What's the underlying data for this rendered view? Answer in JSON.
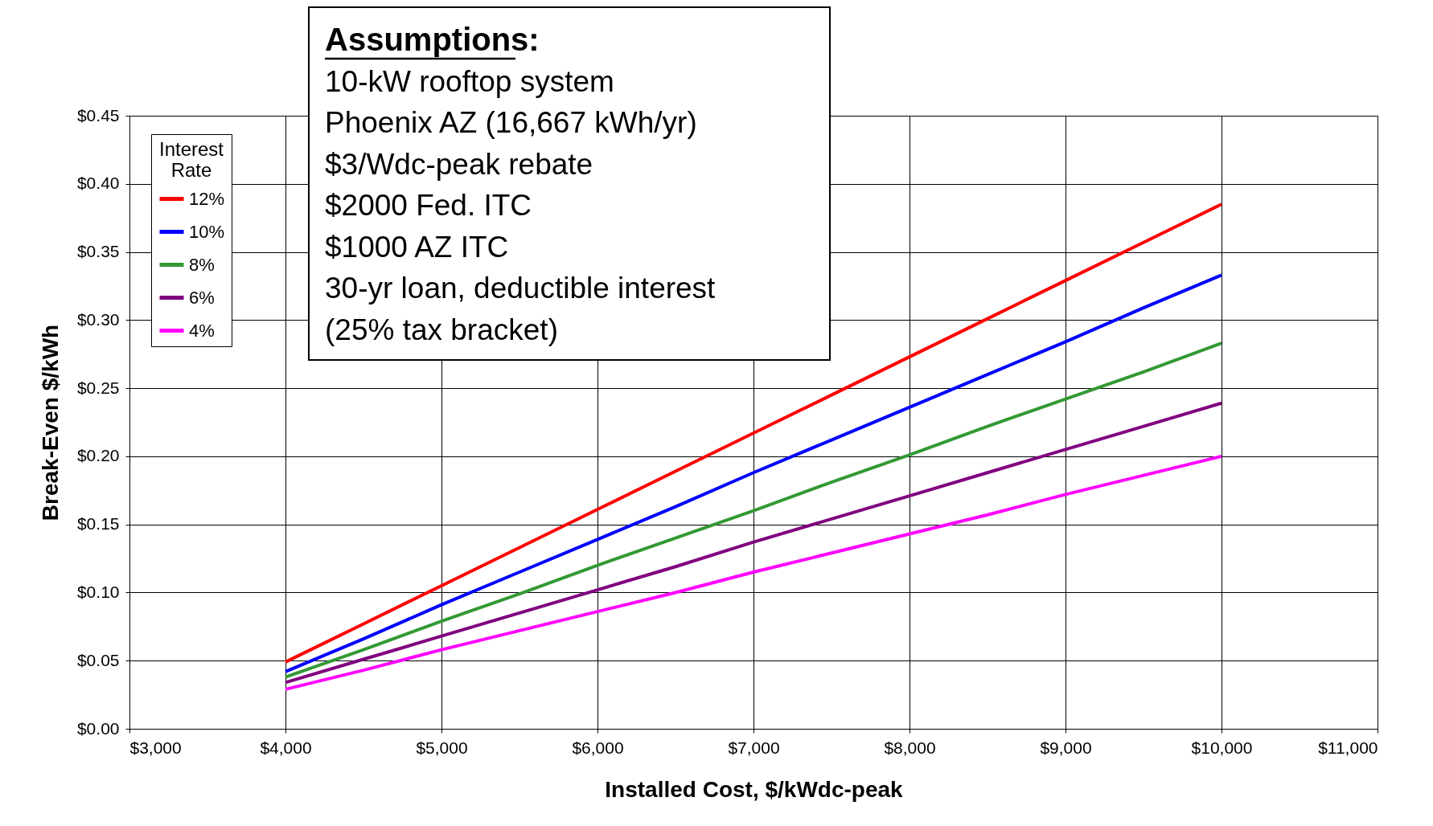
{
  "chart_data": {
    "type": "line",
    "xlabel": "Installed Cost, $/kWdc-peak",
    "ylabel": "Break-Even $/kWh",
    "legend_title": "Interest Rate",
    "legend": "top left",
    "grid": true,
    "marker": "none",
    "line_style": "solid",
    "x": [
      4000,
      4500,
      5000,
      5500,
      6000,
      6500,
      7000,
      7500,
      8000,
      8500,
      9000,
      9500,
      10000
    ],
    "series": [
      {
        "name": "12%",
        "color": "#ff0000",
        "values": [
          0.049,
          0.077,
          0.105,
          0.133,
          0.161,
          0.189,
          0.217,
          0.245,
          0.273,
          0.301,
          0.329,
          0.357,
          0.385
        ]
      },
      {
        "name": "10%",
        "color": "#0000ff",
        "values": [
          0.042,
          0.066,
          0.091,
          0.115,
          0.139,
          0.163,
          0.188,
          0.212,
          0.236,
          0.26,
          0.284,
          0.309,
          0.333
        ]
      },
      {
        "name": "8%",
        "color": "#339933",
        "values": [
          0.038,
          0.058,
          0.079,
          0.099,
          0.12,
          0.14,
          0.16,
          0.181,
          0.201,
          0.222,
          0.242,
          0.262,
          0.283
        ]
      },
      {
        "name": "6%",
        "color": "#800080",
        "values": [
          0.034,
          0.051,
          0.068,
          0.085,
          0.102,
          0.119,
          0.137,
          0.154,
          0.171,
          0.188,
          0.205,
          0.222,
          0.239
        ]
      },
      {
        "name": "4%",
        "color": "#ff00ff",
        "values": [
          0.029,
          0.043,
          0.058,
          0.072,
          0.086,
          0.1,
          0.115,
          0.129,
          0.143,
          0.157,
          0.172,
          0.186,
          0.2
        ]
      }
    ],
    "xlim": [
      3000,
      11000
    ],
    "xticks": [
      {
        "value": 3000,
        "label": "$3,000"
      },
      {
        "value": 4000,
        "label": "$4,000"
      },
      {
        "value": 5000,
        "label": "$5,000"
      },
      {
        "value": 6000,
        "label": "$6,000"
      },
      {
        "value": 7000,
        "label": "$7,000"
      },
      {
        "value": 8000,
        "label": "$8,000"
      },
      {
        "value": 9000,
        "label": "$9,000"
      },
      {
        "value": 10000,
        "label": "$10,000"
      },
      {
        "value": 11000,
        "label": "$11,000"
      }
    ],
    "ylim": [
      0,
      0.45
    ],
    "yticks": [
      {
        "value": 0,
        "label": "$0.00"
      },
      {
        "value": 0.05,
        "label": "$0.05"
      },
      {
        "value": 0.1,
        "label": "$0.10"
      },
      {
        "value": 0.15,
        "label": "$0.15"
      },
      {
        "value": 0.2,
        "label": "$0.20"
      },
      {
        "value": 0.25,
        "label": "$0.25"
      },
      {
        "value": 0.3,
        "label": "$0.30"
      },
      {
        "value": 0.35,
        "label": "$0.35"
      },
      {
        "value": 0.4,
        "label": "$0.40"
      },
      {
        "value": 0.45,
        "label": "$0.45"
      }
    ],
    "annotations": [
      "Assumptions:",
      "10-kW rooftop system",
      "Phoenix AZ (16,667 kWh/yr)",
      "$3/Wdc-peak rebate",
      "$2000 Fed. ITC",
      "$1000 AZ ITC",
      "30-yr loan, deductible interest",
      "(25% tax bracket)"
    ]
  }
}
